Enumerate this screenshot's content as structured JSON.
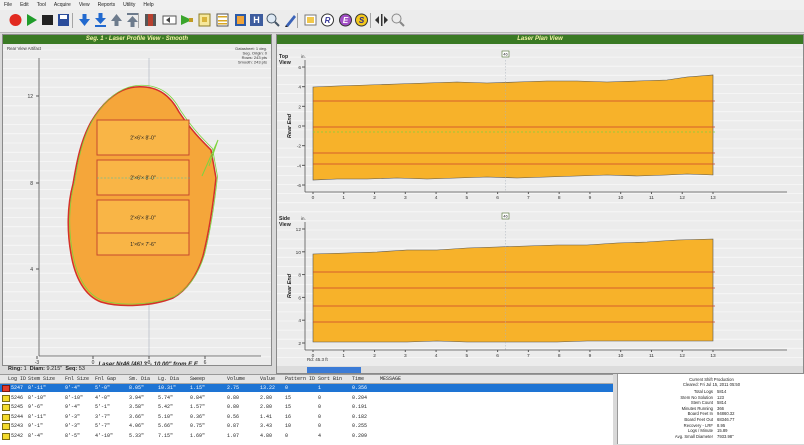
{
  "menu": [
    "File",
    "Edit",
    "Tool",
    "Acquire",
    "View",
    "Reports",
    "Utility",
    "Help"
  ],
  "toolbar": [
    "record-icon",
    "play-icon",
    "stop-icon",
    "save-icon",
    "arrow-down-icon",
    "arrow-down-bar-icon",
    "arrow-up-icon",
    "arrow-up-bar-icon",
    "bookmark-icon",
    "rewind-icon",
    "profile-icon",
    "grid-icon",
    "panel-icon",
    "layer-icon",
    "ruler-icon",
    "zoom-icon",
    "pencil-icon",
    "annotate-icon",
    "r-marker-icon",
    "e-marker-icon",
    "s-marker-icon",
    "width-icon",
    "zoom-out-icon"
  ],
  "colors": {
    "panel_title_bg": "#3a7a24",
    "panel_title_text": "#f3f3a6",
    "band_fill": "#f7b22a",
    "profile_fill": "#f5a63a",
    "selection": "#1e74d4"
  },
  "left_panel": {
    "title": "Seg. 1 - Laser Profile View - Smooth",
    "tl_text": "Rear View Artifact",
    "tr_lines": [
      "Datasheet: 1 deg.",
      "Seg. Origin: 0",
      "Rows: 243 pts",
      "Smooth: 243 pts"
    ],
    "yticks": [
      "12",
      "8",
      "4"
    ],
    "xticks": [
      "-3",
      "0",
      "3",
      "6"
    ],
    "blocks": [
      "2'×6'× 8'-0\"",
      "2'×6'× 8'-0\"",
      "2'×6'× 8'-0\"",
      "1'×6'× 7'-6\""
    ],
    "caption": "Laser Nr46 [46] 3' - 10.00\" from E.E."
  },
  "status": {
    "ring": "Ring:",
    "ring_val": "1",
    "diam": "Diam:",
    "diam_val": "9.215\"",
    "seq": "Seq:",
    "seq_val": "53"
  },
  "right_panel": {
    "title": "Laser Plan View",
    "top_view": "Top\nView",
    "side_view": "Side\nView",
    "y_label": "Rear End",
    "unit": "in.",
    "marker": "46",
    "top_yticks": [
      "6",
      "4",
      "2",
      "0",
      "-2",
      "-4",
      "-6"
    ],
    "side_yticks": [
      "12",
      "10",
      "8",
      "6",
      "4",
      "2"
    ],
    "xticks": [
      "0",
      "1",
      "2",
      "3",
      "4",
      "5",
      "6",
      "7",
      "8",
      "9",
      "10",
      "11",
      "12",
      "13"
    ],
    "footer": "Rd: 45.3 ft"
  },
  "table": {
    "headers": [
      "Log ID",
      "Stem Size",
      "Fnl Size",
      "Fnl Gap",
      "Sm. Dia",
      "Lg. Dia",
      "Sweep",
      "Volume",
      "Value",
      "Pattern ID",
      "Sort Bin",
      "Time",
      "MESSAGE"
    ],
    "rows": [
      [
        "5247",
        "8'-11\"",
        "9'-4\"",
        "5'-0\"",
        "8.05\"",
        "10.31\"",
        "1.15\"",
        "2.75",
        "13.22",
        "0",
        "1",
        "0.356",
        ""
      ],
      [
        "5246",
        "8'-10\"",
        "8'-10\"",
        "4'-0\"",
        "3.94\"",
        "5.74\"",
        "0.84\"",
        "0.80",
        "2.80",
        "15",
        "0",
        "0.204",
        ""
      ],
      [
        "5245",
        "9'-6\"",
        "9'-4\"",
        "5'-1\"",
        "3.58\"",
        "5.42\"",
        "1.57\"",
        "0.80",
        "2.80",
        "15",
        "0",
        "0.191",
        ""
      ],
      [
        "5244",
        "8'-11\"",
        "9'-3\"",
        "3'-7\"",
        "3.66\"",
        "5.10\"",
        "0.36\"",
        "0.56",
        "1.41",
        "16",
        "0",
        "0.182",
        ""
      ],
      [
        "5243",
        "9'-1\"",
        "9'-3\"",
        "5'-7\"",
        "4.06\"",
        "5.66\"",
        "0.75\"",
        "0.87",
        "3.43",
        "10",
        "0",
        "0.255",
        ""
      ],
      [
        "5242",
        "8'-4\"",
        "8'-5\"",
        "4'-10\"",
        "5.33\"",
        "7.15\"",
        "1.69\"",
        "1.07",
        "4.80",
        "0",
        "4",
        "0.209",
        ""
      ]
    ]
  },
  "summary": {
    "title": "Current Shift Production",
    "subtitle": "Cleared: Fri Jul 15, 2011 05:50",
    "items": [
      [
        "Total Logs",
        "5814"
      ],
      [
        "Stem No Solution",
        "123"
      ],
      [
        "Stem Count",
        "5814"
      ],
      [
        "Minutes Running",
        "366"
      ],
      [
        "Board Feet In",
        "94860.32"
      ],
      [
        "Board Feet Out",
        "68346.77"
      ],
      [
        "Recovery - LRF",
        "8.95"
      ],
      [
        "Logs / Minute",
        "15.89"
      ],
      [
        "Avg. Small Diameter",
        "7933.98\""
      ]
    ]
  }
}
